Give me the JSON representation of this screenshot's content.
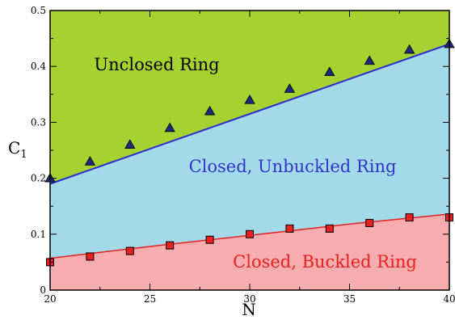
{
  "chart_data": {
    "type": "area",
    "title": "",
    "xlabel": "N",
    "ylabel": "C",
    "ylabel_subscript": "1",
    "xlim": [
      20,
      40
    ],
    "ylim": [
      0,
      0.5
    ],
    "x_ticks": [
      20,
      25,
      30,
      35,
      40
    ],
    "x_tick_labels": [
      "20",
      "25",
      "30",
      "35",
      "40"
    ],
    "y_ticks": [
      0,
      0.1,
      0.2,
      0.3,
      0.4,
      0.5
    ],
    "y_tick_labels": [
      "0",
      "0.1",
      "0.2",
      "0.3",
      "0.4",
      "0.5"
    ],
    "grid": false,
    "legend": "none",
    "regions": [
      {
        "label": "Unclosed Ring",
        "fill": "#a6d22f",
        "text_color": "#000000"
      },
      {
        "label": "Closed, Unbuckled Ring",
        "fill": "#a2dae9",
        "text_color": "#3333cc"
      },
      {
        "label": "Closed, Buckled Ring",
        "fill": "#f7acaf",
        "text_color": "#e8201f"
      }
    ],
    "boundaries": [
      {
        "color": "#2b2bd0",
        "x": [
          20,
          22,
          24,
          26,
          28,
          30,
          32,
          34,
          36,
          38,
          40
        ],
        "y": [
          0.19,
          0.215,
          0.24,
          0.265,
          0.29,
          0.315,
          0.34,
          0.365,
          0.39,
          0.415,
          0.44
        ]
      },
      {
        "color": "#e8201f",
        "x": [
          20,
          25,
          30,
          35,
          40
        ],
        "y": [
          0.057,
          0.078,
          0.098,
          0.118,
          0.136
        ]
      }
    ],
    "series": [
      {
        "marker": "triangle",
        "color": "#1e2a7a",
        "x": [
          20,
          22,
          24,
          26,
          28,
          30,
          32,
          34,
          36,
          38,
          40
        ],
        "y": [
          0.2,
          0.23,
          0.26,
          0.29,
          0.32,
          0.34,
          0.36,
          0.39,
          0.41,
          0.43,
          0.44
        ]
      },
      {
        "marker": "square",
        "color": "#e8201f",
        "x": [
          20,
          22,
          24,
          26,
          28,
          30,
          32,
          34,
          36,
          38,
          40
        ],
        "y": [
          0.05,
          0.06,
          0.07,
          0.08,
          0.09,
          0.1,
          0.11,
          0.11,
          0.12,
          0.13,
          0.13
        ]
      }
    ]
  }
}
